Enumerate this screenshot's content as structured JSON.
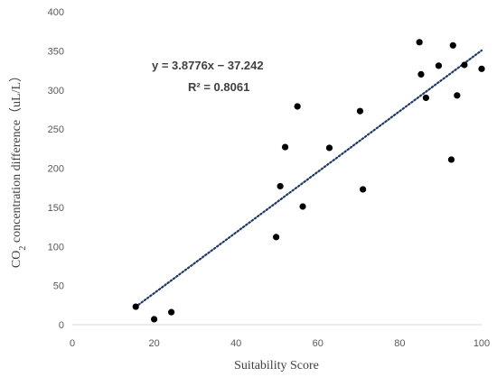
{
  "chart_data": {
    "type": "scatter",
    "title": "",
    "xlabel": "Suitability Score",
    "ylabel_prefix": "CO",
    "ylabel_subscript": "2",
    "ylabel_suffix": " concentration difference（uL/L）",
    "xlim": [
      0,
      100
    ],
    "ylim": [
      0,
      400
    ],
    "xticks": [
      0,
      20,
      40,
      60,
      80,
      100
    ],
    "yticks": [
      0,
      50,
      100,
      150,
      200,
      250,
      300,
      350,
      400
    ],
    "grid": false,
    "points": [
      {
        "x": 15.5,
        "y": 23
      },
      {
        "x": 20.0,
        "y": 7
      },
      {
        "x": 24.2,
        "y": 16
      },
      {
        "x": 49.8,
        "y": 112
      },
      {
        "x": 50.8,
        "y": 177
      },
      {
        "x": 52.0,
        "y": 227
      },
      {
        "x": 55.0,
        "y": 279
      },
      {
        "x": 56.3,
        "y": 151
      },
      {
        "x": 62.8,
        "y": 226
      },
      {
        "x": 70.3,
        "y": 273
      },
      {
        "x": 71.0,
        "y": 173
      },
      {
        "x": 84.8,
        "y": 361
      },
      {
        "x": 85.2,
        "y": 320
      },
      {
        "x": 86.4,
        "y": 290
      },
      {
        "x": 89.5,
        "y": 331
      },
      {
        "x": 92.6,
        "y": 211
      },
      {
        "x": 93.0,
        "y": 357
      },
      {
        "x": 94.0,
        "y": 293
      },
      {
        "x": 95.8,
        "y": 332
      },
      {
        "x": 100.0,
        "y": 327
      }
    ],
    "trendline": {
      "slope": 3.8776,
      "intercept": -37.242,
      "x_range": [
        15.5,
        100
      ],
      "style": "dotted",
      "color": "#1f3864"
    },
    "annotations": {
      "equation": "y = 3.8776x − 37.242",
      "r_squared": "R² = 0.8061"
    },
    "colors": {
      "points": "#000000",
      "axis": "#d9d9d9",
      "tick_text": "#595959"
    }
  }
}
